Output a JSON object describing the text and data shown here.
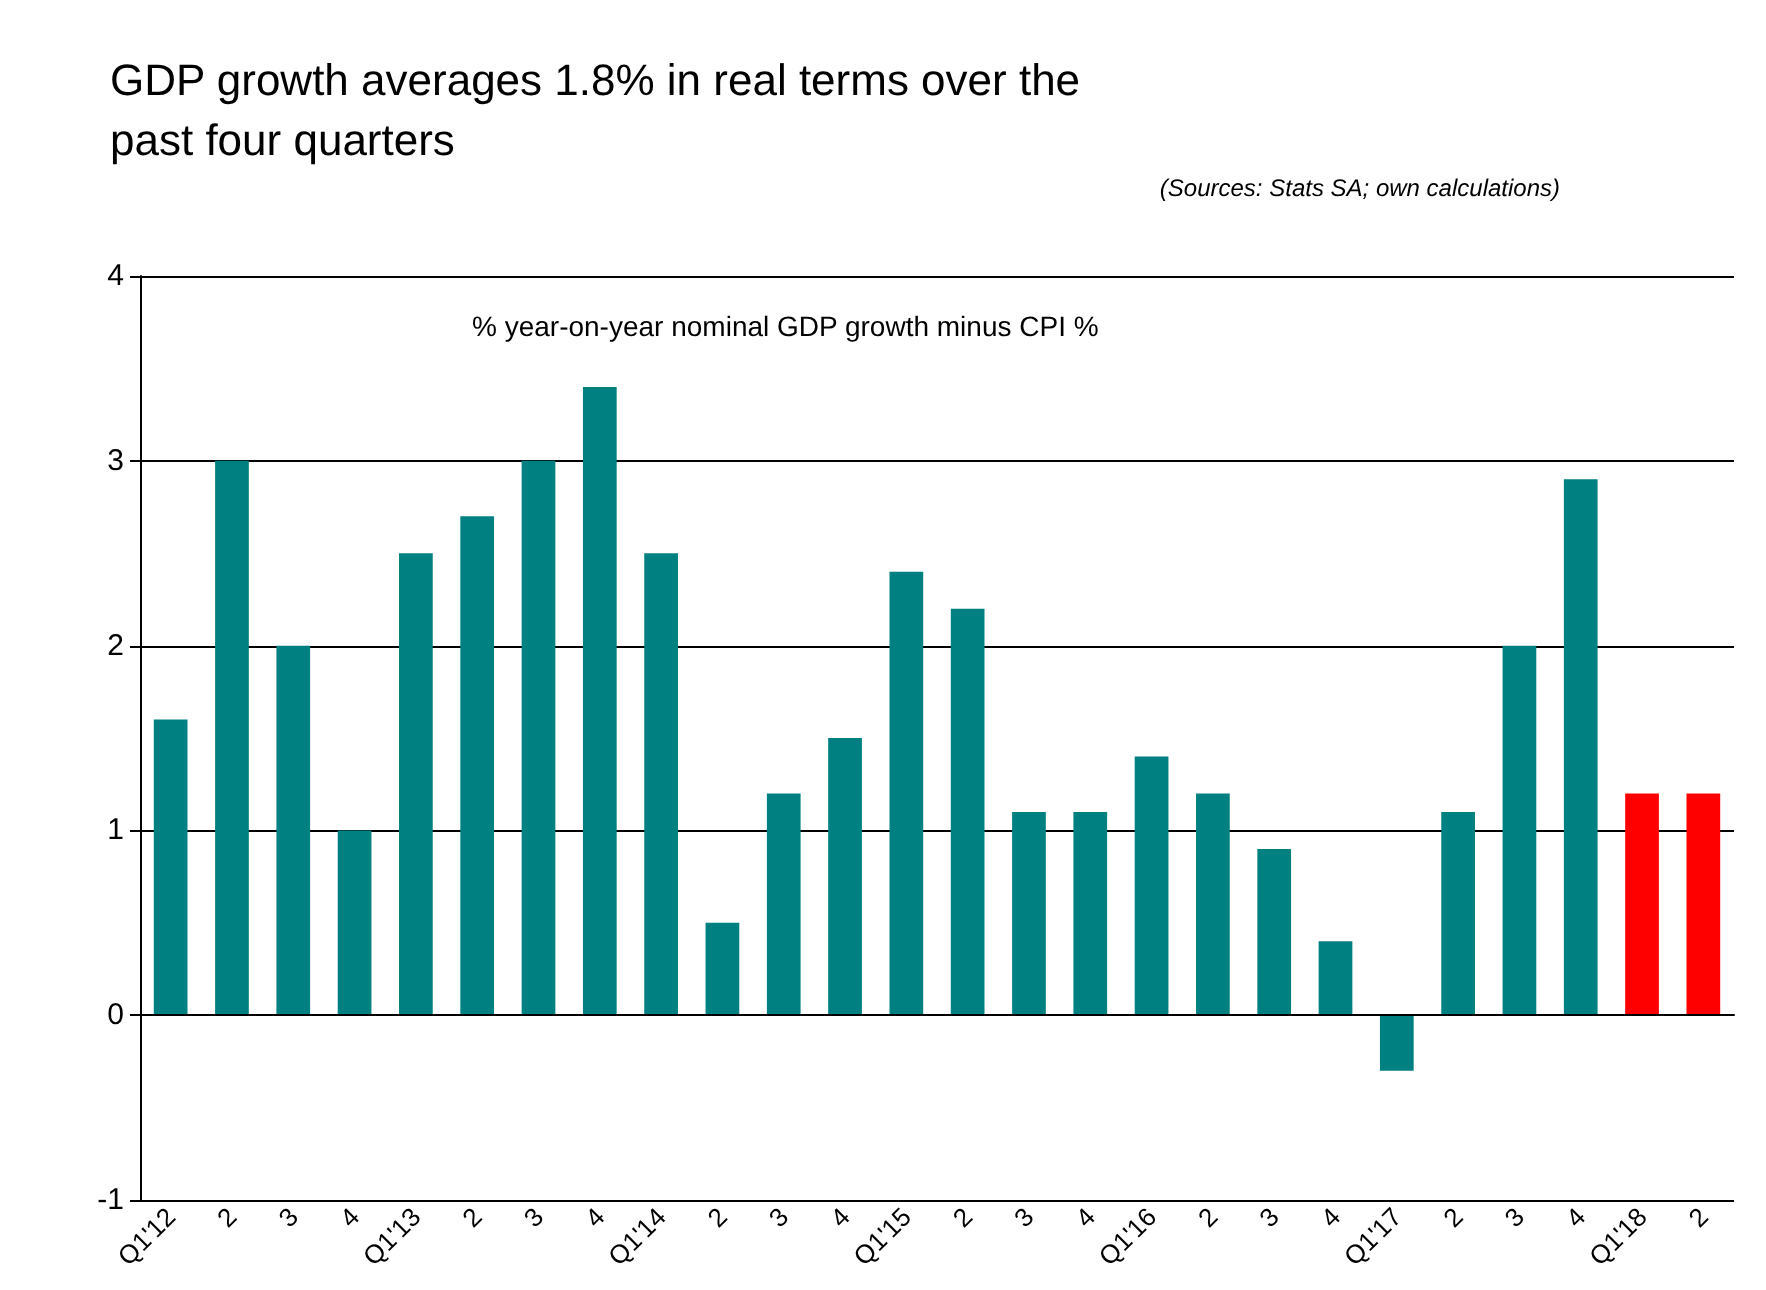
{
  "chart_data": {
    "type": "bar",
    "title": "GDP growth averages 1.8% in real terms over the past four quarters",
    "annotations": [
      "(Sources: Stats SA; own calculations)",
      "% year-on-year nominal GDP growth minus CPI %"
    ],
    "categories": [
      "Q1'12",
      "2",
      "3",
      "4",
      "Q1'13",
      "2",
      "3",
      "4",
      "Q1'14",
      "2",
      "3",
      "4",
      "Q1'15",
      "2",
      "3",
      "4",
      "Q1'16",
      "2",
      "3",
      "4",
      "Q1'17",
      "2",
      "3",
      "4",
      "Q1'18",
      "2"
    ],
    "values": [
      1.6,
      3,
      2,
      1,
      2.5,
      2.7,
      3,
      3.4,
      2.5,
      0.5,
      1.2,
      1.5,
      2.4,
      2.2,
      1.1,
      1.1,
      1.4,
      1.2,
      0.9,
      0.4,
      -0.3,
      1.1,
      2,
      2.9,
      1.2,
      1.2
    ],
    "colors": [
      "#008080",
      "#008080",
      "#008080",
      "#008080",
      "#008080",
      "#008080",
      "#008080",
      "#008080",
      "#008080",
      "#008080",
      "#008080",
      "#008080",
      "#008080",
      "#008080",
      "#008080",
      "#008080",
      "#008080",
      "#008080",
      "#008080",
      "#008080",
      "#008080",
      "#008080",
      "#008080",
      "#008080",
      "#ff0000",
      "#ff0000"
    ],
    "ylim": [
      -1,
      4
    ],
    "yticks": [
      -1,
      0,
      1,
      2,
      3,
      4
    ],
    "grid": "y"
  }
}
